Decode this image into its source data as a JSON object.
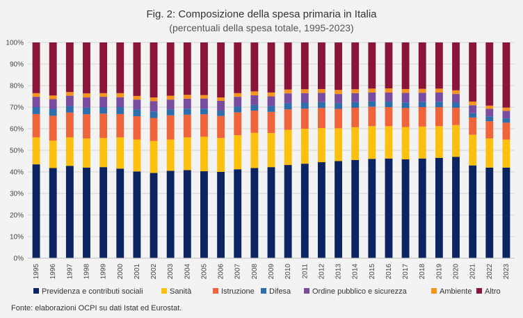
{
  "chart_data": {
    "type": "bar",
    "stacked": true,
    "title": "Fig. 2: Composizione della spesa primaria in Italia",
    "subtitle": "(percentuali della spesa totale, 1995-2023)",
    "source": "Fonte: elaborazioni OCPI su dati Istat ed Eurostat.",
    "ylim": [
      0,
      100
    ],
    "yticks": [
      "0%",
      "10%",
      "20%",
      "30%",
      "40%",
      "50%",
      "60%",
      "70%",
      "80%",
      "90%",
      "100%"
    ],
    "grid": true,
    "legend_position": "bottom",
    "categories": [
      "1995",
      "1996",
      "1997",
      "1998",
      "1999",
      "2000",
      "2001",
      "2002",
      "2003",
      "2004",
      "2005",
      "2006",
      "2007",
      "2008",
      "2009",
      "2010",
      "2011",
      "2012",
      "2013",
      "2014",
      "2015",
      "2016",
      "2017",
      "2018",
      "2019",
      "2020",
      "2021",
      "2022",
      "2023"
    ],
    "series": [
      {
        "name": "Previdenza e contributi sociali",
        "color": "#0c2461",
        "values": [
          43.5,
          41.8,
          42.8,
          42.0,
          42.2,
          41.5,
          40.2,
          39.5,
          40.5,
          40.8,
          40.3,
          40.0,
          41.2,
          41.8,
          42.2,
          43.2,
          43.8,
          44.5,
          45.0,
          45.5,
          46.0,
          46.2,
          45.8,
          46.2,
          46.5,
          47.0,
          43.0,
          42.0,
          42.0
        ]
      },
      {
        "name": "Sanità",
        "color": "#fdc00f",
        "values": [
          12.5,
          12.7,
          13.2,
          13.5,
          13.5,
          14.5,
          14.8,
          14.8,
          14.5,
          15.2,
          16.0,
          15.7,
          15.8,
          16.3,
          15.8,
          16.3,
          16.2,
          15.8,
          15.2,
          15.2,
          15.2,
          15.0,
          15.0,
          14.8,
          14.7,
          14.7,
          14.2,
          13.5,
          13.0
        ]
      },
      {
        "name": "Istruzione",
        "color": "#f0643c",
        "values": [
          10.8,
          11.5,
          11.5,
          11.2,
          11.3,
          10.8,
          10.8,
          10.7,
          11.2,
          10.5,
          10.4,
          10.2,
          10.6,
          10.3,
          9.8,
          9.5,
          9.3,
          9.3,
          9.0,
          9.0,
          9.0,
          8.8,
          8.8,
          9.0,
          8.8,
          8.0,
          8.0,
          8.0,
          7.8
        ]
      },
      {
        "name": "Difesa",
        "color": "#2e6ead",
        "values": [
          3.2,
          3.2,
          3.0,
          3.0,
          3.0,
          3.2,
          3.2,
          3.0,
          2.8,
          2.8,
          2.6,
          2.5,
          2.7,
          2.6,
          2.7,
          2.8,
          2.8,
          2.7,
          2.6,
          2.6,
          2.5,
          2.6,
          2.6,
          2.5,
          2.5,
          2.4,
          2.0,
          2.2,
          2.0
        ]
      },
      {
        "name": "Ordine pubblico e sicurezza",
        "color": "#7a4c9f",
        "values": [
          4.8,
          4.5,
          4.8,
          4.8,
          4.8,
          4.6,
          4.5,
          4.8,
          4.5,
          4.6,
          4.7,
          4.5,
          4.5,
          4.5,
          4.5,
          4.6,
          4.4,
          4.3,
          4.3,
          4.2,
          4.1,
          4.2,
          4.4,
          4.2,
          4.3,
          4.0,
          3.7,
          3.5,
          3.5
        ]
      },
      {
        "name": "Ambiente",
        "color": "#f7941d",
        "values": [
          1.7,
          1.7,
          1.7,
          1.9,
          1.7,
          1.9,
          1.7,
          1.7,
          1.8,
          1.8,
          1.6,
          1.6,
          1.7,
          1.8,
          1.8,
          1.8,
          1.8,
          1.8,
          1.9,
          1.8,
          1.8,
          1.9,
          1.8,
          1.8,
          1.8,
          1.7,
          1.7,
          1.5,
          1.5
        ]
      },
      {
        "name": "Altro",
        "color": "#8b1538",
        "values": [
          23.5,
          24.6,
          23.0,
          23.6,
          23.5,
          23.5,
          24.8,
          25.5,
          24.7,
          24.3,
          24.4,
          25.5,
          23.5,
          22.7,
          23.2,
          21.8,
          21.7,
          21.6,
          22.0,
          21.7,
          21.4,
          21.3,
          21.6,
          21.5,
          21.4,
          22.2,
          27.4,
          29.3,
          30.2
        ]
      }
    ]
  }
}
